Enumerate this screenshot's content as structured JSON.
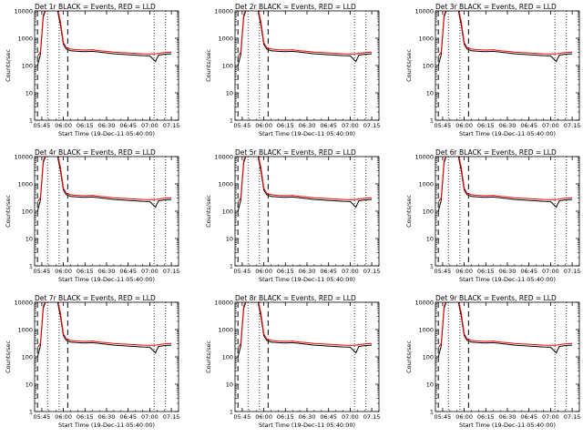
{
  "figure": {
    "panels": [
      {
        "title": "Det 1r BLACK = Events, RED = LLD",
        "ylabel": "Counts/sec",
        "xlabel": "Start Time (19-Dec-11 05:40:00)"
      },
      {
        "title": "Det 2r BLACK = Events, RED = LLD",
        "ylabel": "Counts/sec",
        "xlabel": "Start Time (19-Dec-11 05:40:00)"
      },
      {
        "title": "Det 3r BLACK = Events, RED = LLD",
        "ylabel": "Counts/sec",
        "xlabel": "Start Time (19-Dec-11 05:40:00)"
      },
      {
        "title": "Det 4r BLACK = Events, RED = LLD",
        "ylabel": "Counts/sec",
        "xlabel": "Start Time (19-Dec-11 05:40:00)"
      },
      {
        "title": "Det 5r BLACK = Events, RED = LLD",
        "ylabel": "Counts/sec",
        "xlabel": "Start Time (19-Dec-11 05:40:00)"
      },
      {
        "title": "Det 6r BLACK = Events, RED = LLD",
        "ylabel": "Counts/sec",
        "xlabel": "Start Time (19-Dec-11 05:40:00)"
      },
      {
        "title": "Det 7r BLACK = Events, RED = LLD",
        "ylabel": "Counts/sec",
        "xlabel": "Start Time (19-Dec-11 05:40:00)"
      },
      {
        "title": "Det 8r BLACK = Events, RED = LLD",
        "ylabel": "Counts/sec",
        "xlabel": "Start Time (19-Dec-11 05:40:00)"
      },
      {
        "title": "Det 9r BLACK = Events, RED = LLD",
        "ylabel": "Counts/sec",
        "xlabel": "Start Time (19-Dec-11 05:40:00)"
      }
    ]
  },
  "chart_data": {
    "type": "line",
    "layout": "3x3 grid",
    "y_scale": "log",
    "ylim": [
      1,
      10000
    ],
    "y_ticks": [
      "1",
      "10",
      "100",
      "1000",
      "10000"
    ],
    "xlim": [
      "05:40",
      "07:20"
    ],
    "x_ticks": [
      "05:45",
      "06:00",
      "06:15",
      "06:30",
      "06:45",
      "07:00",
      "07:15"
    ],
    "colors": {
      "events": "#000000",
      "lld": "#ff0000"
    },
    "x": [
      "05:42",
      "05:44",
      "05:46",
      "05:48",
      "05:50",
      "05:52",
      "05:54",
      "05:56",
      "05:58",
      "06:00",
      "06:02",
      "06:05",
      "06:10",
      "06:15",
      "06:20",
      "06:25",
      "06:30",
      "06:35",
      "06:40",
      "06:45",
      "06:50",
      "06:55",
      "07:00",
      "07:03",
      "07:04",
      "07:06",
      "07:08",
      "07:10",
      "07:15"
    ],
    "series": [
      {
        "name": "BLACK = Events",
        "values": [
          100,
          250,
          6000,
          12000,
          12000,
          12000,
          12000,
          10000,
          3000,
          600,
          400,
          350,
          330,
          320,
          330,
          310,
          290,
          270,
          260,
          250,
          240,
          230,
          225,
          160,
          140,
          240,
          250,
          260,
          270
        ]
      },
      {
        "name": "RED = LLD",
        "values": [
          220,
          300,
          7000,
          13000,
          13000,
          13000,
          13000,
          12000,
          4000,
          700,
          450,
          400,
          380,
          370,
          380,
          350,
          330,
          310,
          300,
          290,
          280,
          270,
          265,
          265,
          270,
          280,
          290,
          300,
          310
        ]
      }
    ],
    "vertical_lines": {
      "dashed": [
        "05:42",
        "06:03"
      ],
      "dotted": [
        "05:49",
        "05:57",
        "07:03",
        "07:11"
      ]
    }
  }
}
